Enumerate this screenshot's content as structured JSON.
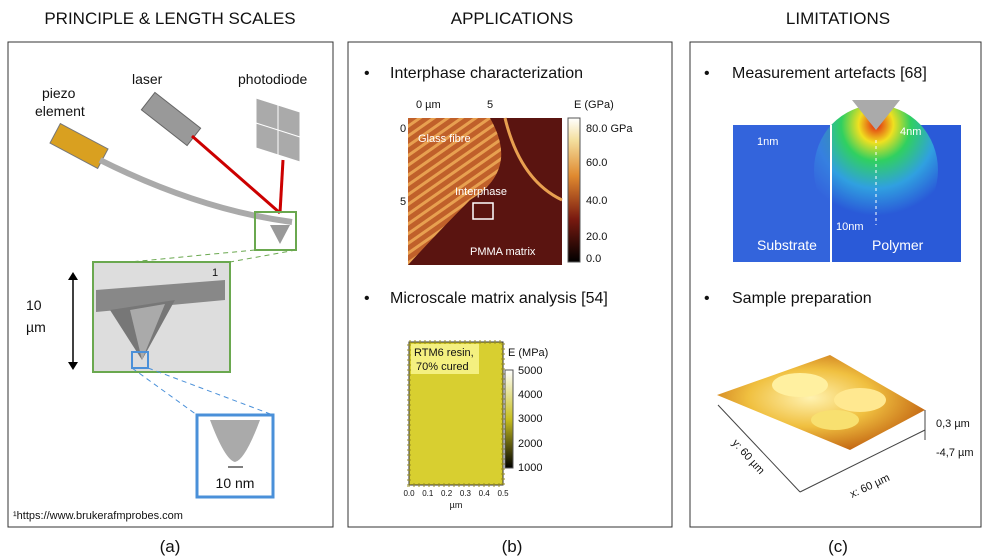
{
  "panel_a": {
    "title": "PRINCIPLE & LENGTH SCALES",
    "piezo": [
      "piezo",
      "element"
    ],
    "laser": "laser",
    "photodiode": "photodiode",
    "scale_value": "10",
    "scale_unit": "µm",
    "image_ref": "1",
    "tip_size": "10 nm",
    "footnote": "¹https://www.brukerafmprobes.com",
    "caption": "(a)"
  },
  "panel_b": {
    "title": "APPLICATIONS",
    "bullets": [
      "Interphase characterization",
      "Microscale matrix analysis [54]"
    ],
    "image_1": {
      "x_ticks": [
        "0 µm",
        "5"
      ],
      "y_ticks": [
        "0",
        "5"
      ],
      "regions": [
        "Glass fibre",
        "Interphase",
        "PMMA matrix"
      ],
      "colorbar_title": "E (GPa)",
      "colorbar_ticks": [
        "80.0 GPa",
        "60.0",
        "40.0",
        "20.0",
        "0.0"
      ]
    },
    "image_2": {
      "label": [
        "RTM6 resin,",
        "70% cured"
      ],
      "colorbar_title": "E (MPa)",
      "colorbar_ticks": [
        "5000",
        "4000",
        "3000",
        "2000",
        "1000"
      ],
      "x_ticks": [
        "0.0",
        "0.1",
        "0.2",
        "0.3",
        "0.4",
        "0.5"
      ],
      "x_unit": "µm"
    },
    "caption": "(b)"
  },
  "panel_c": {
    "title": "LIMITATIONS",
    "bullets": [
      "Measurement artefacts [68]",
      "Sample preparation"
    ],
    "fem": {
      "labels": [
        "1nm",
        "4nm",
        "10nm",
        "Substrate",
        "Polymer"
      ]
    },
    "surface": {
      "z_ticks": [
        "0,3 µm",
        "-4,7 µm"
      ],
      "y_axis": "y: 60 µm",
      "x_axis": "x: 60 µm"
    },
    "caption": "(c)"
  }
}
